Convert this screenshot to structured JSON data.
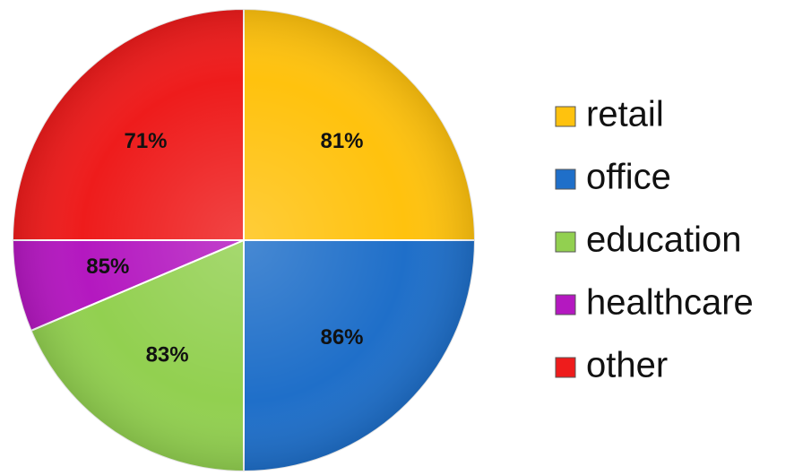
{
  "chart_data": {
    "type": "pie",
    "categories": [
      "retail",
      "office",
      "education",
      "healthcare",
      "other"
    ],
    "shares": [
      0.25,
      0.25,
      0.186,
      0.064,
      0.25
    ],
    "data_labels": [
      "81%",
      "86%",
      "83%",
      "85%",
      "71%"
    ],
    "colors": {
      "retail": "#FFC20E",
      "office": "#1F6FC9",
      "education": "#92D050",
      "healthcare": "#B418C0",
      "other": "#EE1C1C"
    },
    "start": "12 o'clock",
    "direction": "clockwise",
    "legend": "right",
    "title": ""
  }
}
